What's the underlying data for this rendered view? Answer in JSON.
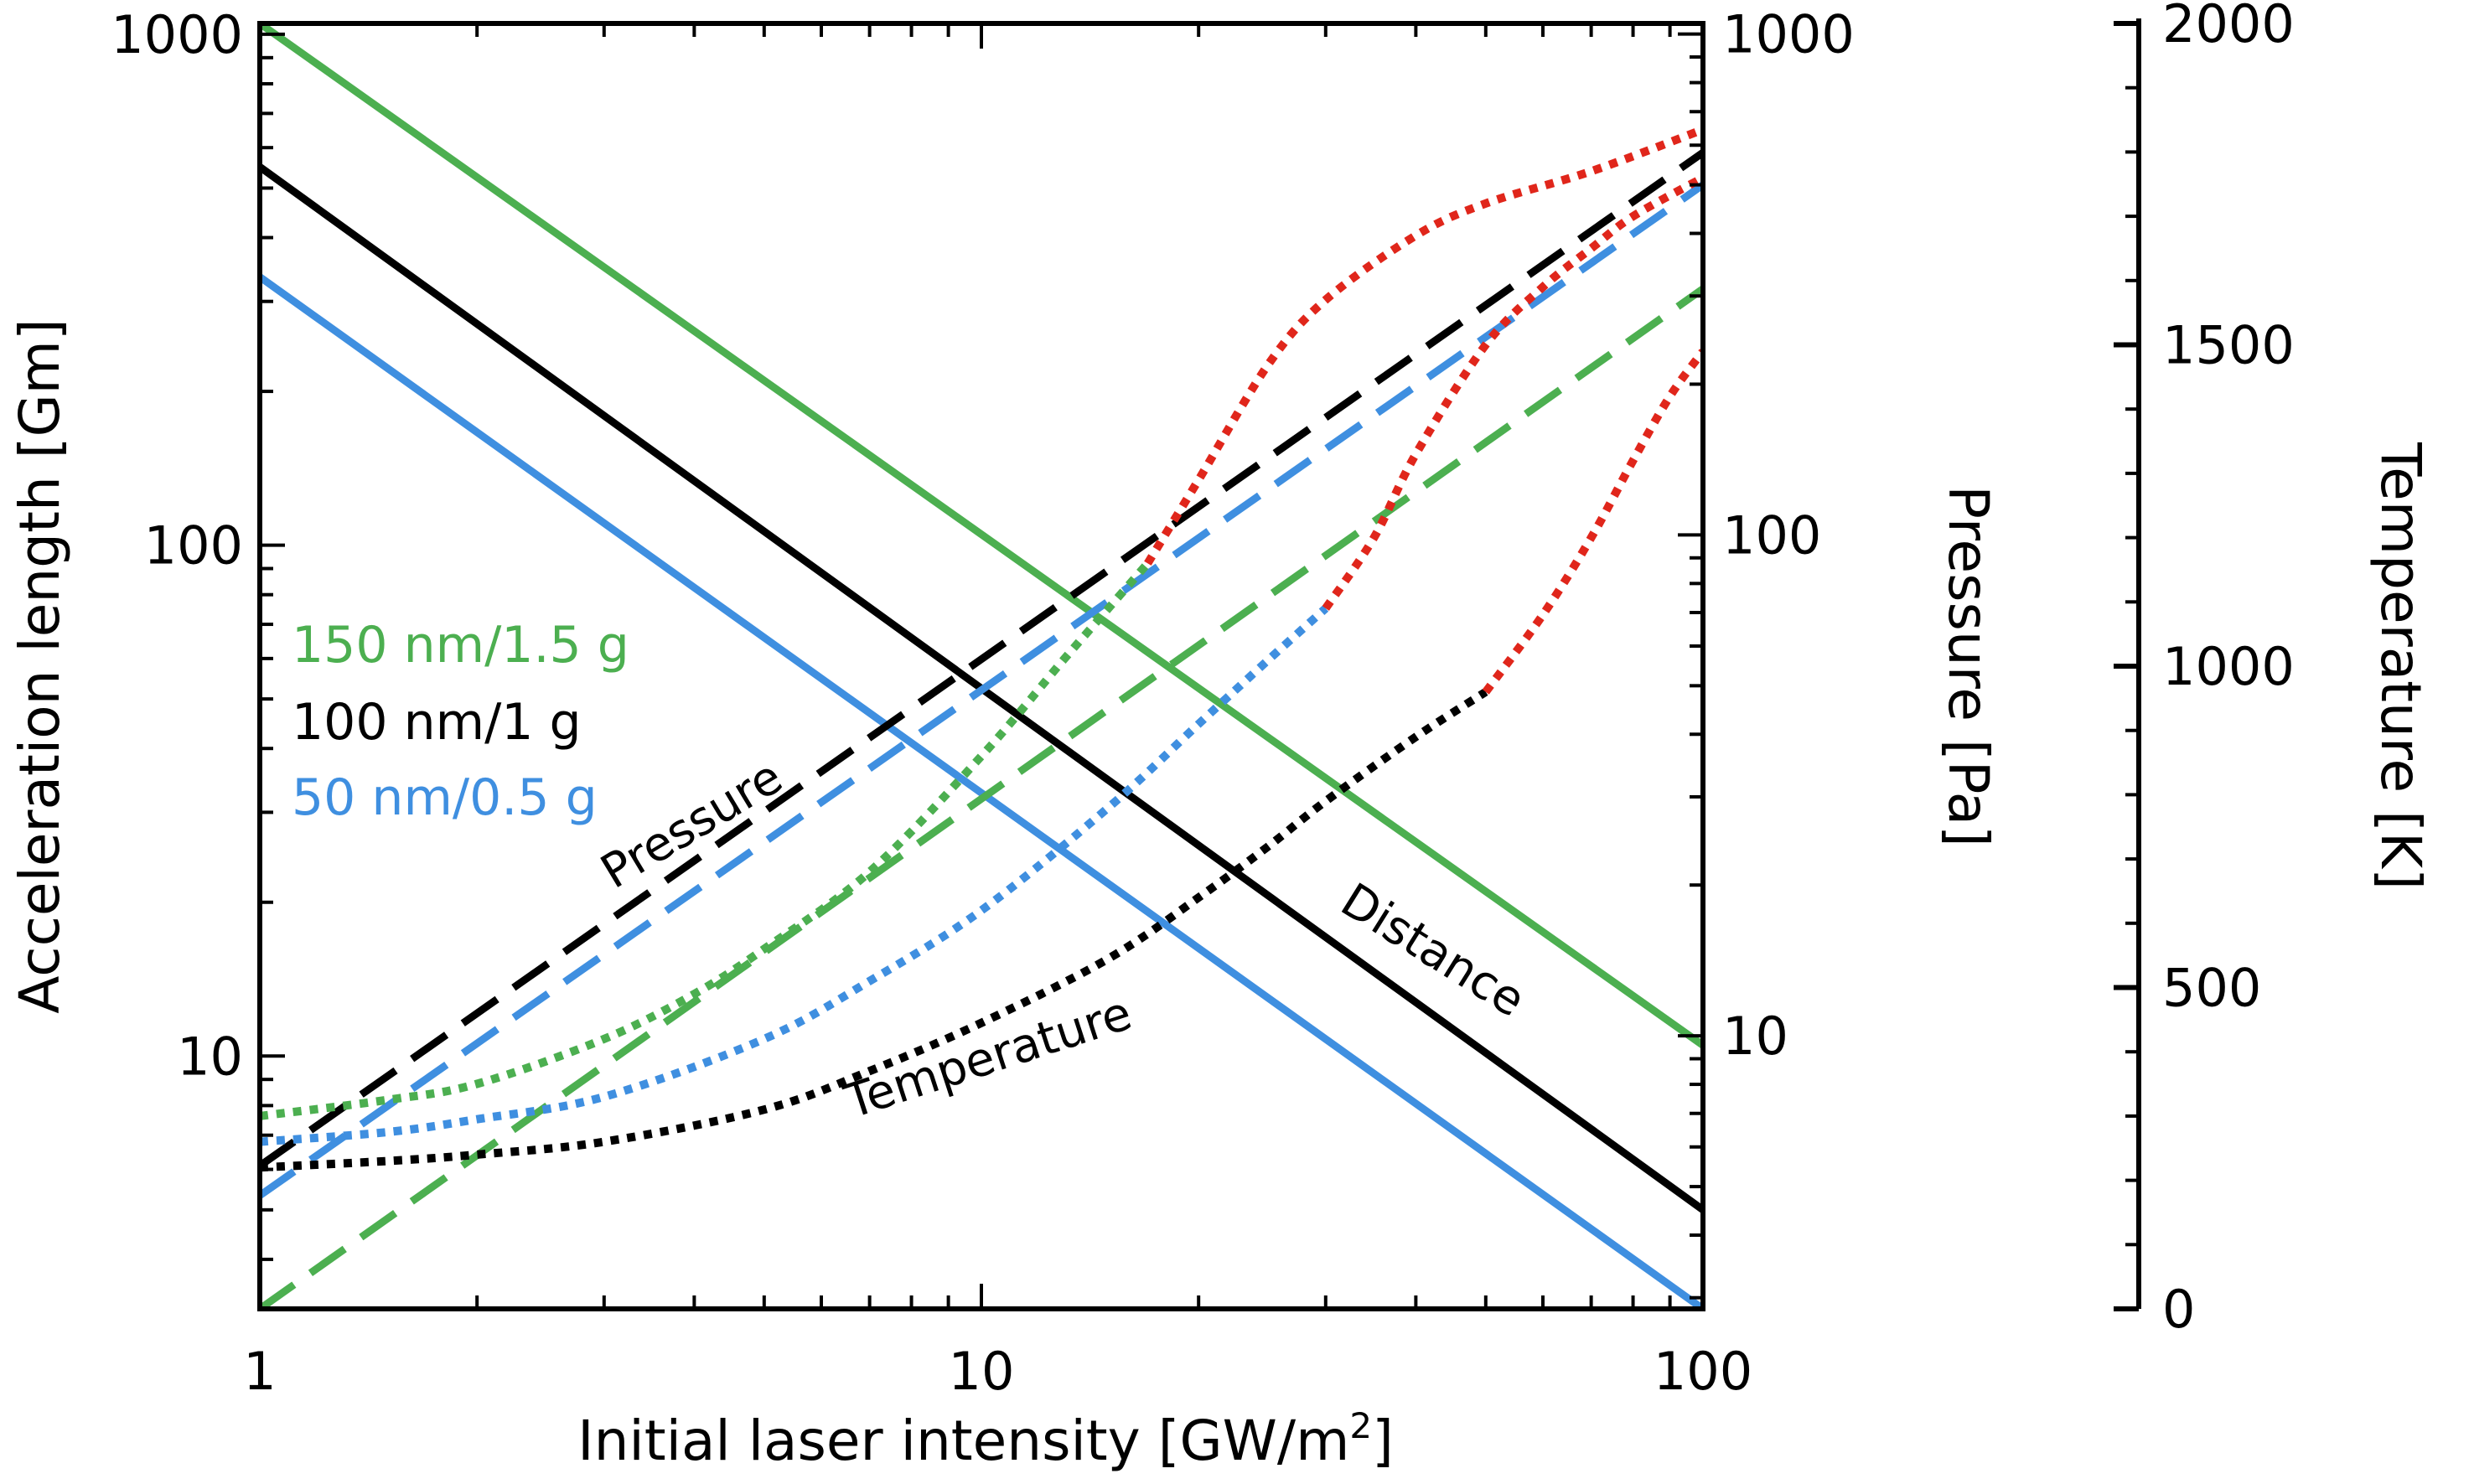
{
  "colors": {
    "green": "#4caf50",
    "black": "#000000",
    "blue": "#3f8fe0",
    "red": "#e0261b"
  },
  "chart_data": {
    "type": "line",
    "xlabel_main": "Initial laser intensity [GW/m",
    "xlabel_sup": "2",
    "xlabel_tail": "]",
    "x_scale": "log",
    "xlim": [
      1,
      100
    ],
    "x_ticks": [
      {
        "v": 1,
        "label": "1"
      },
      {
        "v": 10,
        "label": "10"
      },
      {
        "v": 100,
        "label": "100"
      }
    ],
    "axes": {
      "left": {
        "label": "Acceleration length [Gm]",
        "scale": "log",
        "lim": [
          3.2,
          1050
        ],
        "ticks": [
          {
            "v": 10,
            "label": "10"
          },
          {
            "v": 100,
            "label": "100"
          },
          {
            "v": 1000,
            "label": "1000"
          }
        ]
      },
      "pressure": {
        "label": "Pressure [Pa]",
        "scale": "log",
        "lim": [
          2.85,
          1050
        ],
        "ticks": [
          {
            "v": 10,
            "label": "10"
          },
          {
            "v": 100,
            "label": "100"
          },
          {
            "v": 1000,
            "label": "1000"
          }
        ]
      },
      "temperature": {
        "label": "Temperature [K]",
        "scale": "linear",
        "lim": [
          0,
          2000
        ],
        "ticks": [
          {
            "v": 0,
            "label": "0"
          },
          {
            "v": 500,
            "label": "500"
          },
          {
            "v": 1000,
            "label": "1000"
          },
          {
            "v": 1500,
            "label": "1500"
          },
          {
            "v": 2000,
            "label": "2000"
          }
        ]
      }
    },
    "legend": [
      {
        "label": "150 nm/1.5 g",
        "color": "green"
      },
      {
        "label": "100 nm/1 g",
        "color": "black"
      },
      {
        "label": "50 nm/0.5 g",
        "color": "blue"
      }
    ],
    "annotations": {
      "pressure": "Pressure",
      "temperature": "Temperature",
      "distance": "Distance"
    },
    "series": [
      {
        "group": "distance",
        "axis": "left",
        "style": "solid",
        "color": "green",
        "x": [
          1,
          100
        ],
        "y": [
          1050,
          10.5
        ]
      },
      {
        "group": "distance",
        "axis": "left",
        "style": "solid",
        "color": "black",
        "x": [
          1,
          100
        ],
        "y": [
          550,
          5.0
        ]
      },
      {
        "group": "distance",
        "axis": "left",
        "style": "solid",
        "color": "blue",
        "x": [
          1,
          100
        ],
        "y": [
          335,
          3.2
        ]
      },
      {
        "group": "pressure",
        "axis": "pressure",
        "style": "dashed",
        "color": "black",
        "x": [
          1,
          100
        ],
        "y": [
          5.5,
          580
        ]
      },
      {
        "group": "pressure",
        "axis": "pressure",
        "style": "dashed",
        "color": "blue",
        "x": [
          1,
          100
        ],
        "y": [
          4.8,
          500
        ]
      },
      {
        "group": "pressure",
        "axis": "pressure",
        "style": "dashed",
        "color": "green",
        "x": [
          1,
          100
        ],
        "y": [
          2.85,
          310
        ]
      },
      {
        "group": "temperature",
        "axis": "temperature",
        "style": "dotted",
        "color": "green",
        "x": [
          1,
          1.5,
          2,
          3,
          4,
          5,
          7,
          10,
          13,
          15,
          17
        ],
        "y": [
          300,
          325,
          350,
          420,
          490,
          560,
          680,
          860,
          1010,
          1090,
          1160
        ]
      },
      {
        "group": "temperature",
        "axis": "temperature",
        "style": "dotted",
        "color": "red",
        "x": [
          17,
          20,
          25,
          30,
          40,
          50,
          70,
          100
        ],
        "y": [
          1160,
          1290,
          1470,
          1570,
          1670,
          1720,
          1770,
          1835
        ]
      },
      {
        "group": "temperature",
        "axis": "temperature",
        "style": "dotted",
        "color": "blue",
        "x": [
          1,
          1.5,
          2,
          3,
          5,
          7,
          10,
          15,
          20,
          25,
          30
        ],
        "y": [
          260,
          275,
          295,
          330,
          420,
          510,
          620,
          780,
          910,
          1010,
          1090
        ]
      },
      {
        "group": "temperature",
        "axis": "temperature",
        "style": "dotted",
        "color": "red",
        "x": [
          30,
          35,
          40,
          50,
          60,
          70,
          80,
          100
        ],
        "y": [
          1090,
          1200,
          1330,
          1500,
          1590,
          1650,
          1700,
          1760
        ]
      },
      {
        "group": "temperature",
        "axis": "temperature",
        "style": "dotted",
        "color": "black",
        "x": [
          1,
          1.5,
          2,
          3,
          5,
          7,
          10,
          15,
          20,
          25,
          30,
          40,
          50
        ],
        "y": [
          220,
          230,
          240,
          260,
          310,
          370,
          445,
          545,
          640,
          720,
          790,
          890,
          960
        ]
      },
      {
        "group": "temperature",
        "axis": "temperature",
        "style": "dotted",
        "color": "red",
        "x": [
          50,
          60,
          70,
          80,
          90,
          100
        ],
        "y": [
          960,
          1080,
          1200,
          1320,
          1420,
          1490
        ]
      }
    ]
  }
}
